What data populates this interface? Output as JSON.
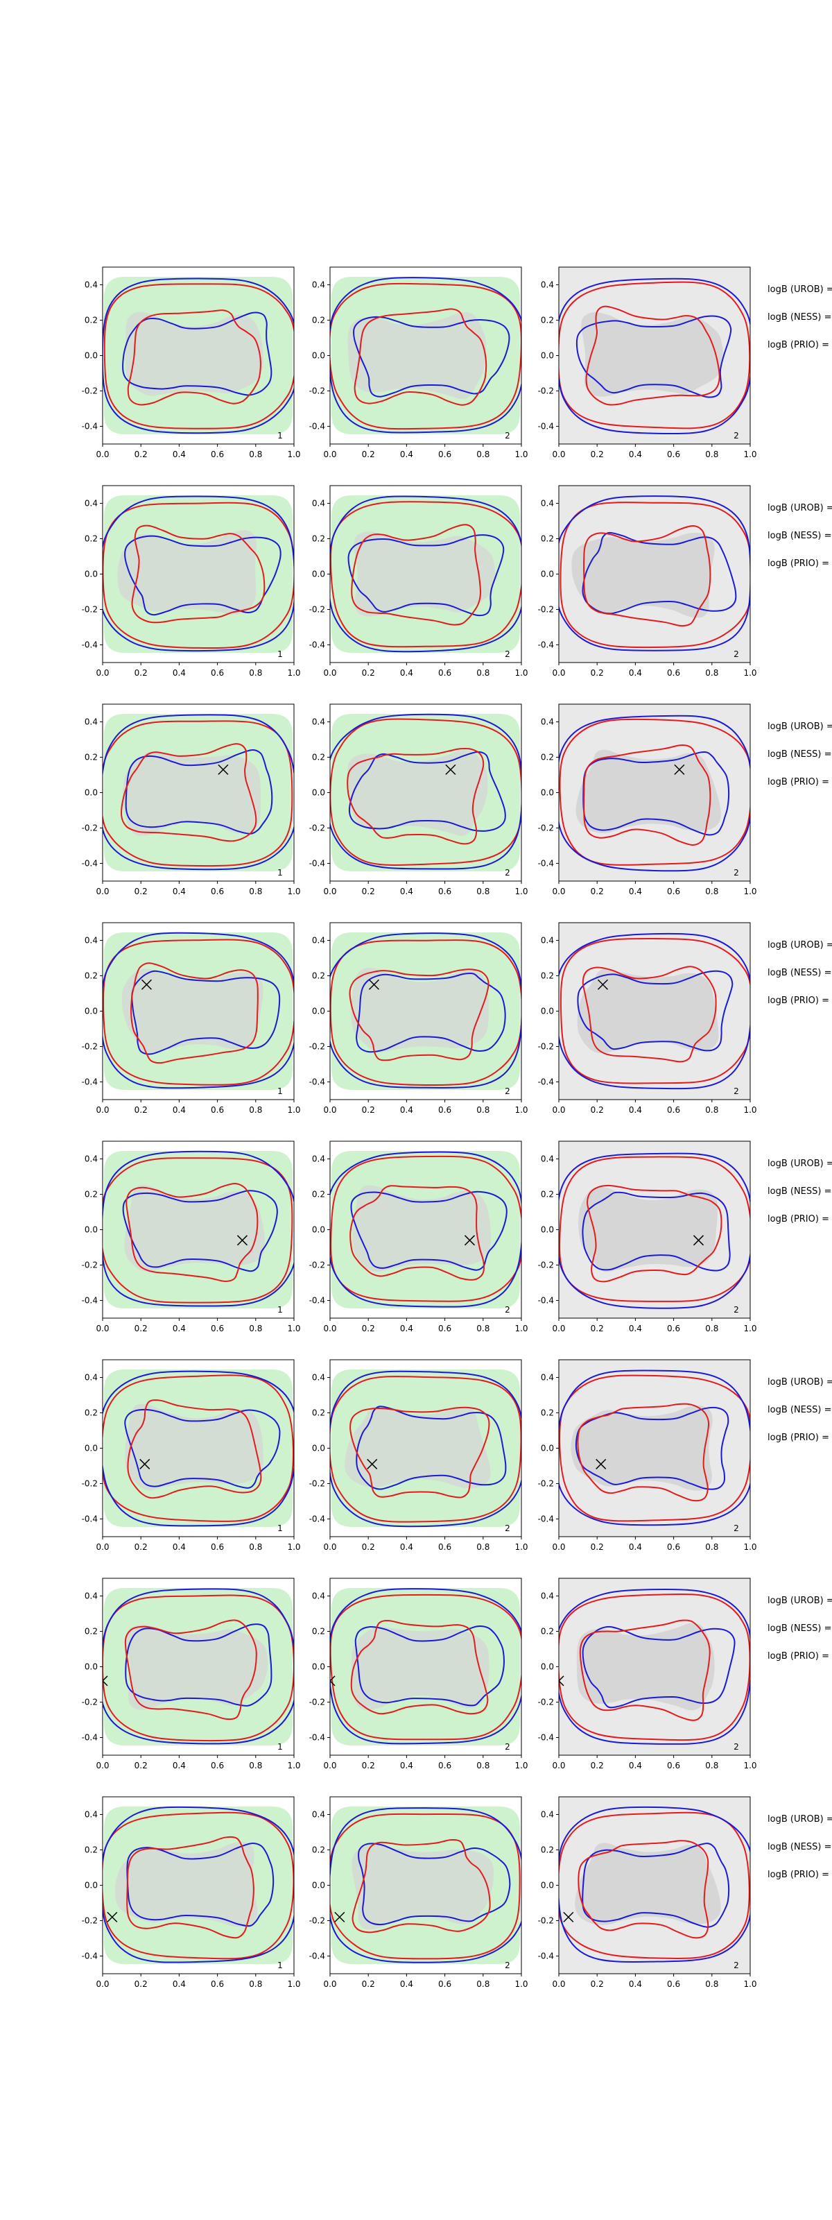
{
  "chart_data": {
    "type": "contour",
    "layout": {
      "rows": 8,
      "cols": 3
    },
    "xlim": [
      0.0,
      1.0
    ],
    "ylim": [
      -0.5,
      0.5
    ],
    "x_ticks": [
      "0.0",
      "0.2",
      "0.4",
      "0.6",
      "0.8",
      "1.0"
    ],
    "y_ticks": [
      "-0.4",
      "-0.2",
      "0.0",
      "0.2",
      "0.4"
    ],
    "y_tick_values": [
      -0.4,
      -0.2,
      0.0,
      0.2,
      0.4
    ],
    "x_tick_values": [
      0.0,
      0.2,
      0.4,
      0.6,
      0.8,
      1.0
    ],
    "colors": {
      "green_fill": "#cdf2cd",
      "gray_fill": "#d6d6d6",
      "light_gray_bg": "#e9e9e9",
      "red_line": "#e41a1c",
      "blue_line": "#1a1ad6",
      "marker": "#000000"
    },
    "panel_labels": [
      "1",
      "2",
      "2"
    ],
    "legend_texts": [
      "logB (UROB) =",
      "logB (NESS) =",
      "logB (PRIO) ="
    ],
    "markers": [
      null,
      null,
      {
        "x": 0.63,
        "y": 0.13
      },
      {
        "x": 0.23,
        "y": 0.15
      },
      {
        "x": 0.73,
        "y": -0.06
      },
      {
        "x": 0.22,
        "y": -0.09
      },
      {
        "x": 0.0,
        "y": -0.08
      },
      {
        "x": 0.05,
        "y": -0.18
      }
    ]
  }
}
